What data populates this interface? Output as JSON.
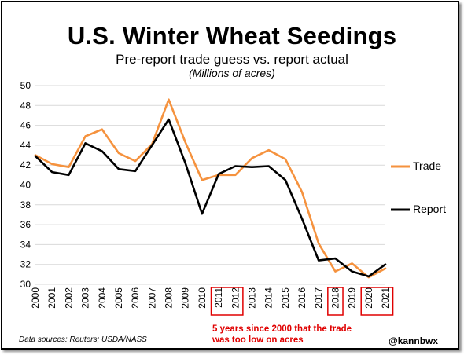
{
  "chart_data": {
    "type": "line",
    "title": "U.S. Winter Wheat Seedings",
    "subtitle": "Pre-report trade guess vs. report actual",
    "units": "(Millions of acres)",
    "x": [
      "2000",
      "2001",
      "2002",
      "2003",
      "2004",
      "2005",
      "2006",
      "2007",
      "2008",
      "2009",
      "2010",
      "2011",
      "2012",
      "2013",
      "2014",
      "2015",
      "2016",
      "2017",
      "2018",
      "2019",
      "2020",
      "2021"
    ],
    "ylim": [
      30,
      50
    ],
    "yticks": [
      "30",
      "32",
      "34",
      "36",
      "38",
      "40",
      "42",
      "44",
      "46",
      "48",
      "50"
    ],
    "grid": true,
    "legend_position": "right",
    "series": [
      {
        "name": "Trade",
        "color": "#f5923e",
        "values": [
          43.0,
          42.1,
          41.8,
          44.9,
          45.6,
          43.2,
          42.4,
          44.1,
          48.6,
          44.3,
          40.5,
          41.0,
          41.0,
          42.7,
          43.5,
          42.6,
          39.3,
          34.1,
          31.3,
          32.1,
          30.7,
          31.6
        ]
      },
      {
        "name": "Report",
        "color": "#000000",
        "values": [
          42.9,
          41.3,
          41.0,
          44.2,
          43.4,
          41.6,
          41.4,
          44.0,
          46.6,
          42.2,
          37.1,
          41.1,
          41.9,
          41.8,
          41.9,
          40.5,
          36.6,
          32.4,
          32.6,
          31.3,
          30.8,
          32.0
        ]
      }
    ],
    "highlight_years": [
      "2011",
      "2012",
      "2018",
      "2020",
      "2021"
    ],
    "highlight_color": "#e00000",
    "annotation": "5 years since 2000 that the trade was too low on acres"
  },
  "footer": {
    "source": "Data sources: Reuters; USDA/NASS",
    "handle": "@kannbwx"
  }
}
